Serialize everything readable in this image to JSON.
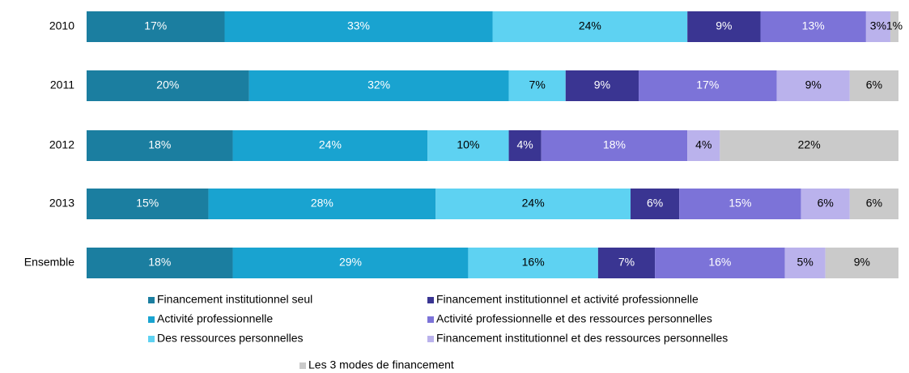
{
  "chart_data": {
    "type": "stacked_bar_horizontal",
    "categories": [
      "2010",
      "2011",
      "2012",
      "2013",
      "Ensemble"
    ],
    "xlim": [
      0,
      100
    ],
    "series": [
      {
        "name": "Financement institutionnel seul",
        "color": "#1b7ea0",
        "label_color": "#ffffff",
        "values": [
          17,
          20,
          18,
          15,
          18
        ],
        "value_labels": [
          "17%",
          "20%",
          "18%",
          "15%",
          "18%"
        ]
      },
      {
        "name": "Activité professionnelle",
        "color": "#19a3d0",
        "label_color": "#ffffff",
        "values": [
          33,
          32,
          24,
          28,
          29
        ],
        "value_labels": [
          "33%",
          "32%",
          "24%",
          "28%",
          "29%"
        ]
      },
      {
        "name": "Des ressources personnelles",
        "color": "#5ed2f2",
        "label_color": "#000000",
        "values": [
          24,
          7,
          10,
          24,
          16
        ],
        "value_labels": [
          "24%",
          "7%",
          "10%",
          "24%",
          "16%"
        ]
      },
      {
        "name": "Financement institutionnel et activité professionnelle",
        "color": "#3a3592",
        "label_color": "#ffffff",
        "values": [
          9,
          9,
          4,
          6,
          7
        ],
        "value_labels": [
          "9%",
          "9%",
          "4%",
          "6%",
          "7%"
        ]
      },
      {
        "name": "Activité professionnelle et des ressources personnelles",
        "color": "#7c73d8",
        "label_color": "#ffffff",
        "values": [
          13,
          17,
          18,
          15,
          16
        ],
        "value_labels": [
          "13%",
          "17%",
          "18%",
          "15%",
          "16%"
        ]
      },
      {
        "name": "Financement institutionnel et des ressources personnelles",
        "color": "#bab2ec",
        "label_color": "#000000",
        "values": [
          3,
          9,
          4,
          6,
          5
        ],
        "value_labels": [
          "3%",
          "9%",
          "4%",
          "6%",
          "5%"
        ]
      },
      {
        "name": "Les 3 modes de financement",
        "color": "#cacaca",
        "label_color": "#000000",
        "values": [
          1,
          6,
          22,
          6,
          9
        ],
        "value_labels": [
          "1%",
          "6%",
          "22%",
          "6%",
          "9%"
        ]
      }
    ]
  }
}
